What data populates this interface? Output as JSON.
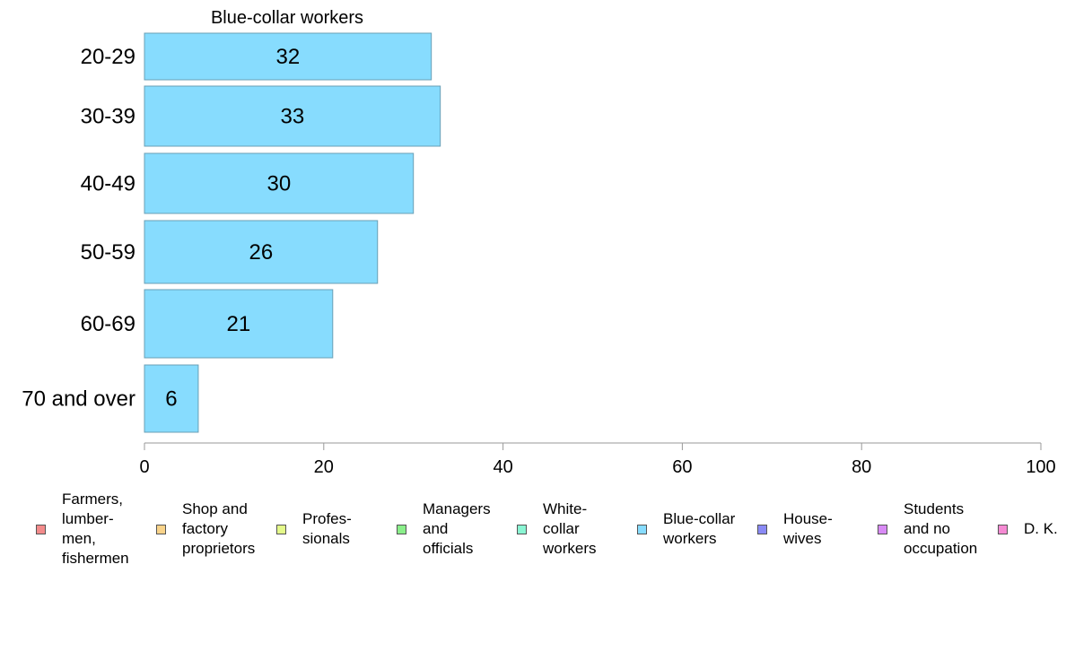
{
  "chart_data": {
    "type": "bar",
    "orientation": "horizontal",
    "title": "Blue-collar workers",
    "categories": [
      "20-29",
      "30-39",
      "40-49",
      "50-59",
      "60-69",
      "70 and over"
    ],
    "series": [
      {
        "values": [
          32,
          33,
          30,
          26,
          21,
          6
        ],
        "color": "#87DCFE"
      }
    ],
    "data_labels": [
      "32",
      "33",
      "30",
      "26",
      "21",
      "6"
    ],
    "xlim": [
      0,
      100
    ],
    "xticks": [
      0,
      20,
      40,
      60,
      80,
      100
    ],
    "xlabel": "",
    "ylabel": "",
    "grid": false,
    "legend_position": "bottom"
  },
  "legend": {
    "items": [
      {
        "label": "Farmers,\nlumber-\nmen,\nfishermen",
        "color": "#F38B8B"
      },
      {
        "label": "Shop and\nfactory\nproprietors",
        "color": "#F9D38A"
      },
      {
        "label": "Profes-\nsionals",
        "color": "#E4F98A"
      },
      {
        "label": "Managers\nand\nofficials",
        "color": "#8AEF8A"
      },
      {
        "label": "White-\ncollar\nworkers",
        "color": "#8AF5D3"
      },
      {
        "label": "Blue-collar\nworkers",
        "color": "#87DCFE"
      },
      {
        "label": "House-\nwives",
        "color": "#8A8AF5"
      },
      {
        "label": "Students\nand no\noccupation",
        "color": "#D88AF5"
      },
      {
        "label": "D. K.",
        "color": "#F58AD3"
      }
    ]
  }
}
